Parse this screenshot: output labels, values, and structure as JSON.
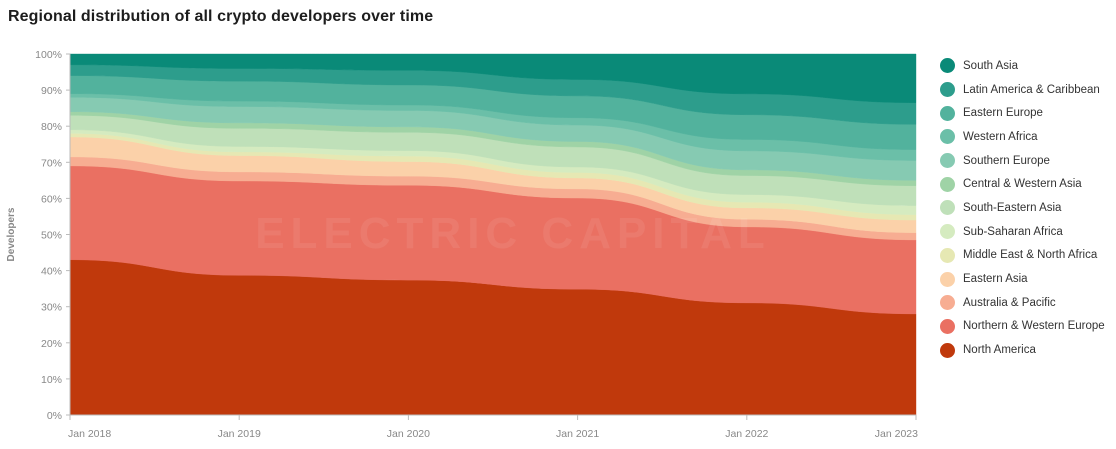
{
  "title": "Regional distribution of all crypto developers over time",
  "watermark": "ELECTRIC CAPITAL",
  "chart_data": {
    "type": "area",
    "stacked": true,
    "normalized": true,
    "title": "Regional distribution of all crypto developers over time",
    "xlabel": "",
    "ylabel": "Developers",
    "ylim": [
      0,
      100
    ],
    "yticks": [
      "0%",
      "10%",
      "20%",
      "30%",
      "40%",
      "50%",
      "60%",
      "70%",
      "80%",
      "90%",
      "100%"
    ],
    "x": [
      2018.0,
      2019.0,
      2020.0,
      2021.0,
      2022.0,
      2023.0
    ],
    "xticks": [
      "Jan 2018",
      "Jan 2019",
      "Jan 2020",
      "Jan 2021",
      "Jan 2022",
      "Jan 2023"
    ],
    "legend_position": "right",
    "series": [
      {
        "name": "North America",
        "color": "#c0390c",
        "values": [
          43,
          38.5,
          37,
          34.5,
          29.5,
          28
        ]
      },
      {
        "name": "Northern & Western Europe",
        "color": "#ea7062",
        "values": [
          26,
          26,
          26,
          25,
          20,
          20.5
        ]
      },
      {
        "name": "Australia & Pacific",
        "color": "#f7ad92",
        "values": [
          2.5,
          2.5,
          2.5,
          2.5,
          2,
          2
        ]
      },
      {
        "name": "Eastern Asia",
        "color": "#fbd1a9",
        "values": [
          5.5,
          4.5,
          4,
          3,
          3,
          3.5
        ]
      },
      {
        "name": "Middle East & North Africa",
        "color": "#e6e8b3",
        "values": [
          1,
          1,
          1.5,
          1.5,
          1.5,
          1.5
        ]
      },
      {
        "name": "Sub-Saharan Africa",
        "color": "#d5ebc0",
        "values": [
          1,
          1.5,
          1.5,
          1.5,
          2,
          2.5
        ]
      },
      {
        "name": "South-Eastern Asia",
        "color": "#bfe0b9",
        "values": [
          4,
          5,
          5,
          5.5,
          5,
          5.5
        ]
      },
      {
        "name": "Central & Western Asia",
        "color": "#9fd3a6",
        "values": [
          1,
          1.5,
          1.5,
          1.5,
          1.5,
          1.5
        ]
      },
      {
        "name": "Southern Europe",
        "color": "#86cab2",
        "values": [
          4,
          4.5,
          4.5,
          4.5,
          5,
          5.5
        ]
      },
      {
        "name": "Western Africa",
        "color": "#6bbfa8",
        "values": [
          1,
          1.5,
          1.5,
          2,
          3,
          3
        ]
      },
      {
        "name": "Eastern Europe",
        "color": "#52b29d",
        "values": [
          5,
          5.5,
          5.5,
          6,
          6.5,
          7
        ]
      },
      {
        "name": "Latin America & Caribbean",
        "color": "#2d9d8c",
        "values": [
          3,
          3.5,
          4,
          4.5,
          5.5,
          6
        ]
      },
      {
        "name": "South Asia",
        "color": "#0a8a78",
        "values": [
          3,
          4,
          4.5,
          7,
          10.5,
          13.5
        ]
      }
    ]
  }
}
